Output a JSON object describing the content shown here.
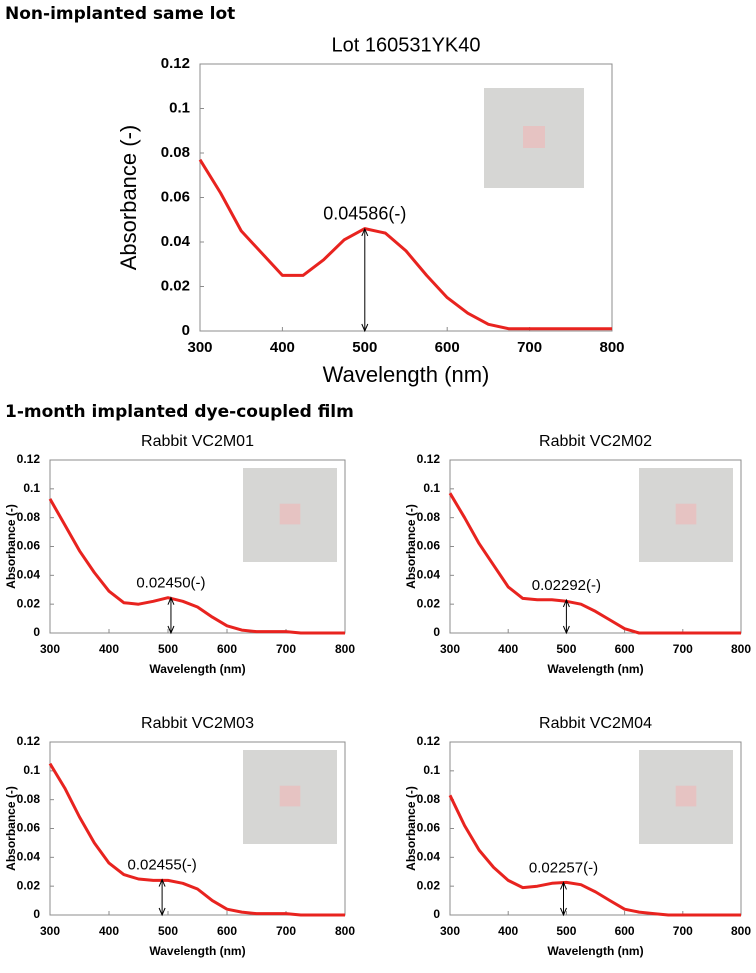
{
  "headings": [
    "Non-implanted same lot",
    "1-month implanted dye-coupled film"
  ],
  "chart_data": [
    {
      "type": "line",
      "title": "Lot 160531YK40",
      "xlabel": "Wavelength  (nm)",
      "ylabel": "Absorbance  (-)",
      "color": "#e8231f",
      "x": [
        300,
        325,
        350,
        375,
        400,
        425,
        450,
        475,
        500,
        525,
        550,
        575,
        600,
        625,
        650,
        675,
        700,
        725,
        750,
        775,
        800
      ],
      "values": [
        0.077,
        0.062,
        0.045,
        0.035,
        0.025,
        0.025,
        0.032,
        0.041,
        0.046,
        0.044,
        0.036,
        0.025,
        0.015,
        0.008,
        0.003,
        0.001,
        0.001,
        0.001,
        0.001,
        0.001,
        0.001
      ],
      "xlim": [
        300,
        800
      ],
      "ylim": [
        0,
        0.12
      ],
      "xticks": [
        300,
        400,
        500,
        600,
        700,
        800
      ],
      "yticks": [
        0,
        0.02,
        0.04,
        0.06,
        0.08,
        0.1,
        0.12
      ],
      "annotation": {
        "label": "0.04586(-)",
        "value": 0.04586,
        "x": 500
      }
    },
    {
      "type": "line",
      "title": "Rabbit VC2M01",
      "xlabel": "Wavelength (nm)",
      "ylabel": "Absorbance (-)",
      "color": "#e8231f",
      "x": [
        300,
        325,
        350,
        375,
        400,
        425,
        450,
        475,
        500,
        525,
        550,
        575,
        600,
        625,
        650,
        675,
        700,
        725,
        750,
        775,
        800
      ],
      "values": [
        0.093,
        0.075,
        0.057,
        0.042,
        0.029,
        0.021,
        0.02,
        0.022,
        0.0245,
        0.022,
        0.018,
        0.011,
        0.005,
        0.002,
        0.001,
        0.001,
        0.001,
        0,
        0,
        0,
        0
      ],
      "xlim": [
        300,
        800
      ],
      "ylim": [
        0,
        0.12
      ],
      "xticks": [
        300,
        400,
        500,
        600,
        700,
        800
      ],
      "yticks": [
        0,
        0.02,
        0.04,
        0.06,
        0.08,
        0.1,
        0.12
      ],
      "annotation": {
        "label": "0.02450(-)",
        "value": 0.0245,
        "x": 505
      }
    },
    {
      "type": "line",
      "title": "Rabbit VC2M02",
      "xlabel": "Wavelength (nm)",
      "ylabel": "Absorbance (-)",
      "color": "#e8231f",
      "x": [
        300,
        325,
        350,
        375,
        400,
        425,
        450,
        475,
        500,
        525,
        550,
        575,
        600,
        625,
        650,
        675,
        700,
        725,
        750,
        775,
        800
      ],
      "values": [
        0.097,
        0.08,
        0.062,
        0.047,
        0.032,
        0.024,
        0.023,
        0.023,
        0.022,
        0.02,
        0.015,
        0.009,
        0.003,
        0,
        0,
        0,
        0,
        0,
        0,
        0,
        0
      ],
      "xlim": [
        300,
        800
      ],
      "ylim": [
        0,
        0.12
      ],
      "xticks": [
        300,
        400,
        500,
        600,
        700,
        800
      ],
      "yticks": [
        0,
        0.02,
        0.04,
        0.06,
        0.08,
        0.1,
        0.12
      ],
      "annotation": {
        "label": "0.02292(-)",
        "value": 0.02292,
        "x": 500
      }
    },
    {
      "type": "line",
      "title": "Rabbit VC2M03",
      "xlabel": "Wavelength (nm)",
      "ylabel": "Absorbance (-)",
      "color": "#e8231f",
      "x": [
        300,
        325,
        350,
        375,
        400,
        425,
        450,
        475,
        500,
        525,
        550,
        575,
        600,
        625,
        650,
        675,
        700,
        725,
        750,
        775,
        800
      ],
      "values": [
        0.105,
        0.088,
        0.068,
        0.05,
        0.036,
        0.028,
        0.025,
        0.024,
        0.024,
        0.022,
        0.018,
        0.01,
        0.004,
        0.002,
        0.001,
        0.001,
        0.001,
        0,
        0,
        0,
        0
      ],
      "xlim": [
        300,
        800
      ],
      "ylim": [
        0,
        0.12
      ],
      "xticks": [
        300,
        400,
        500,
        600,
        700,
        800
      ],
      "yticks": [
        0,
        0.02,
        0.04,
        0.06,
        0.08,
        0.1,
        0.12
      ],
      "annotation": {
        "label": "0.02455(-)",
        "value": 0.02455,
        "x": 490
      }
    },
    {
      "type": "line",
      "title": "Rabbit VC2M04",
      "xlabel": "Wavelength (nm)",
      "ylabel": "Absorbance (-)",
      "color": "#e8231f",
      "x": [
        300,
        325,
        350,
        375,
        400,
        425,
        450,
        475,
        500,
        525,
        550,
        575,
        600,
        625,
        650,
        675,
        700,
        725,
        750,
        775,
        800
      ],
      "values": [
        0.083,
        0.062,
        0.045,
        0.033,
        0.024,
        0.019,
        0.02,
        0.022,
        0.0226,
        0.021,
        0.016,
        0.01,
        0.004,
        0.002,
        0.001,
        0,
        0,
        0,
        0,
        0,
        0
      ],
      "xlim": [
        300,
        800
      ],
      "ylim": [
        0,
        0.12
      ],
      "xticks": [
        300,
        400,
        500,
        600,
        700,
        800
      ],
      "yticks": [
        0,
        0.02,
        0.04,
        0.06,
        0.08,
        0.1,
        0.12
      ],
      "annotation": {
        "label": "0.02257(-)",
        "value": 0.02257,
        "x": 495
      }
    }
  ]
}
